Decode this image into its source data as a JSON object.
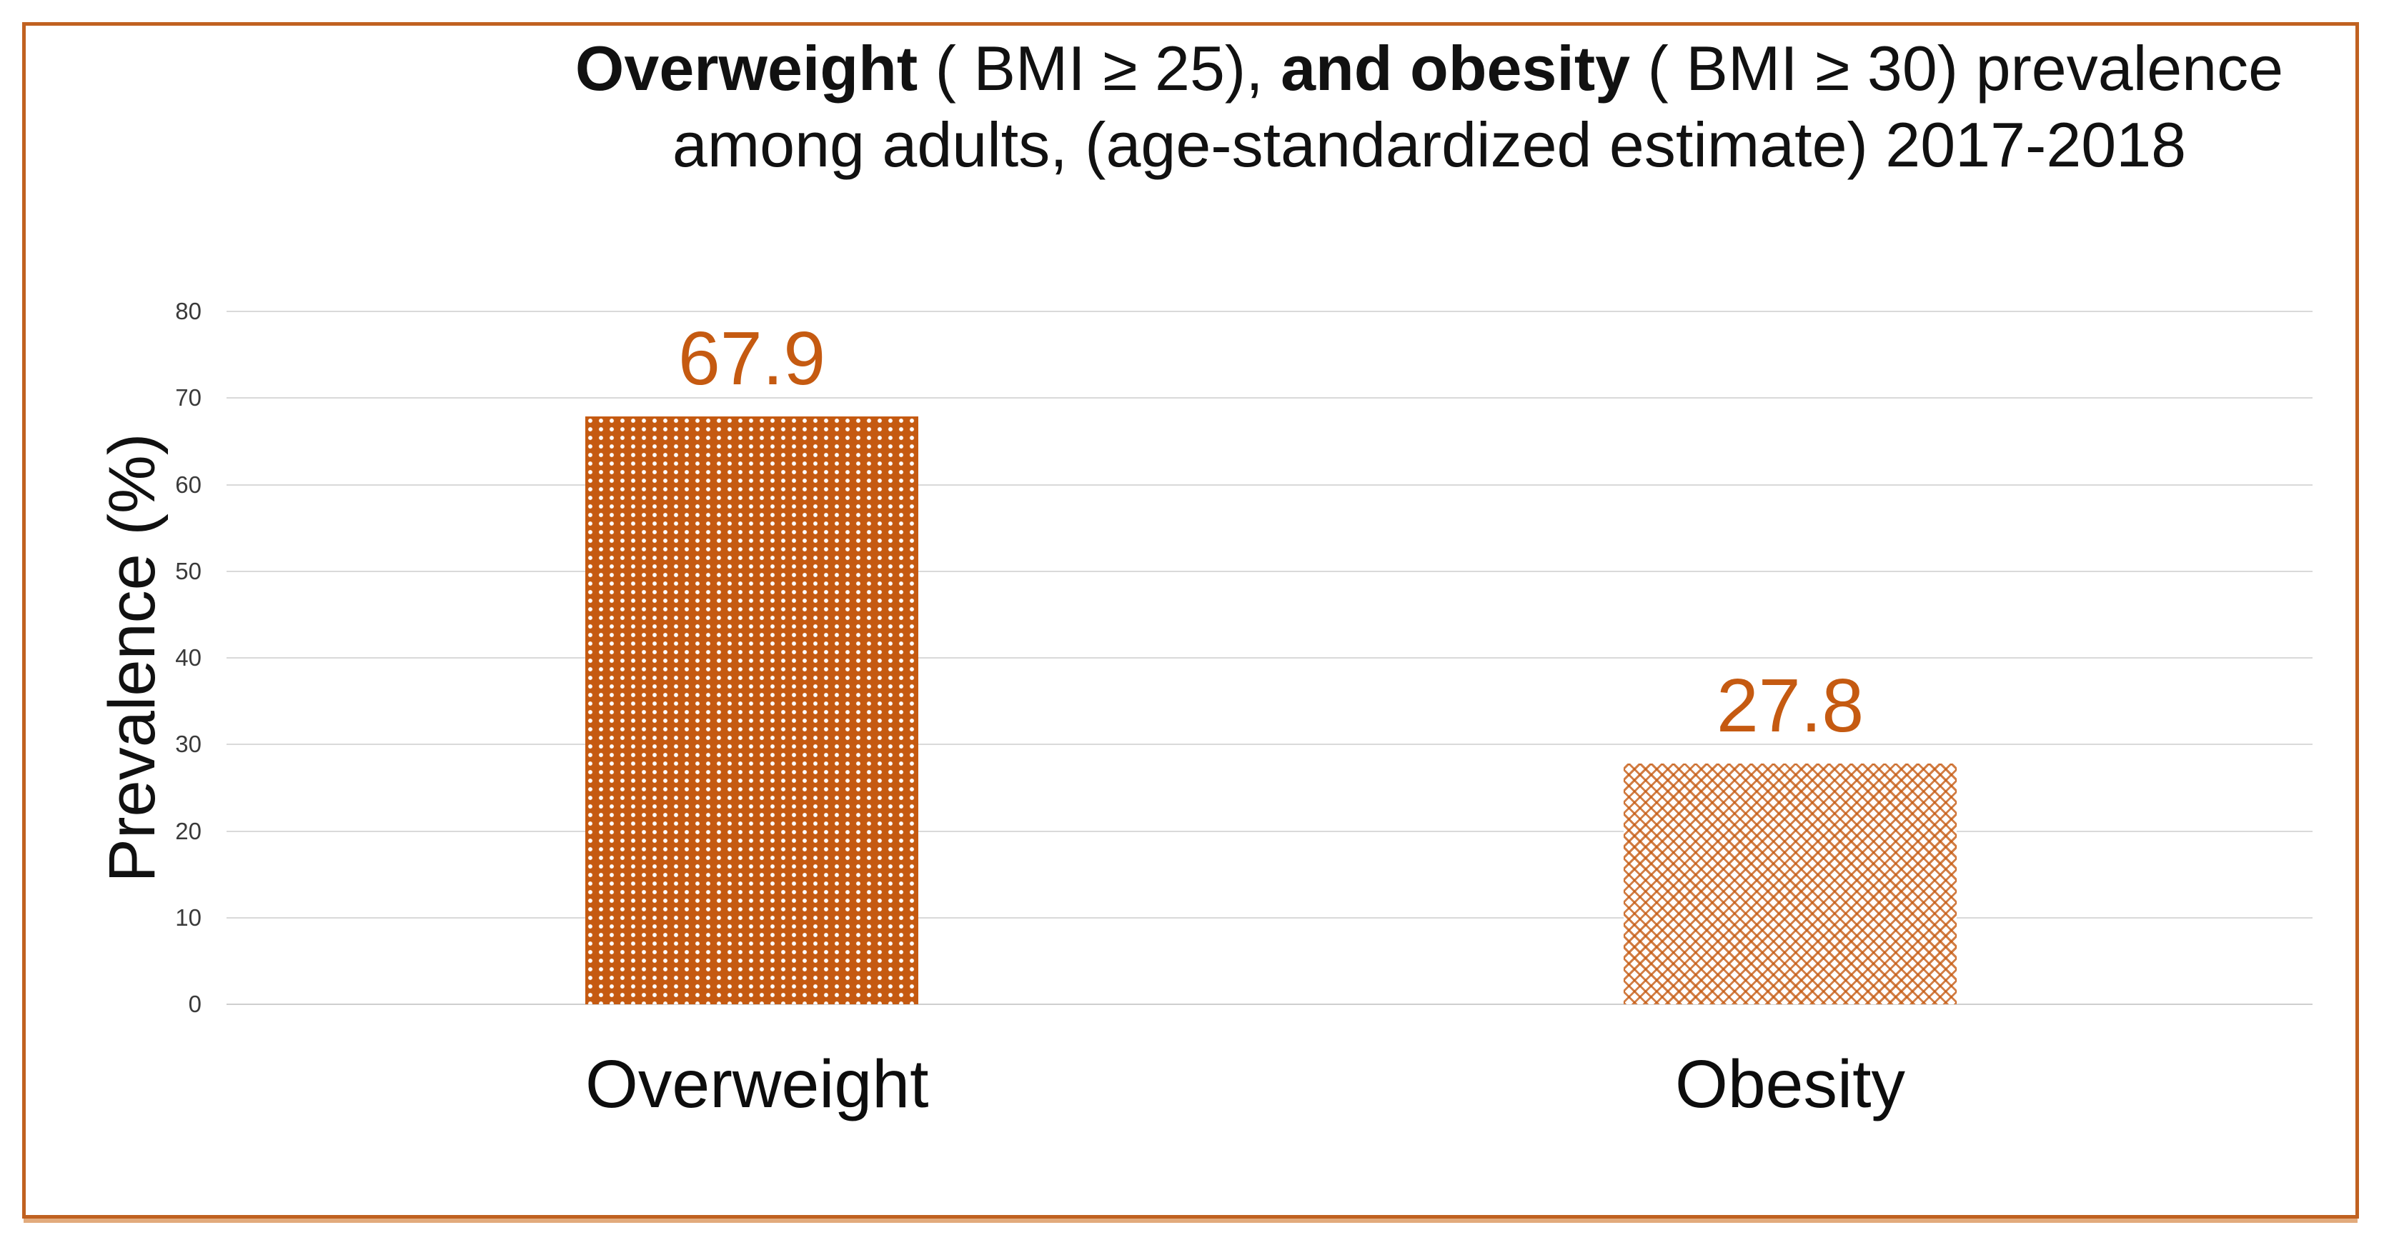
{
  "page": {
    "background": "#FFFFFF"
  },
  "frame": {
    "border_color": "#C06120"
  },
  "title": {
    "bold1": "Overweight",
    "reg1": " ( BMI ≥ 25), ",
    "bold2": "and obesity",
    "reg2": " ( BMI ≥ 30) prevalence",
    "line2": "among adults, (age-standardized estimate) 2017-2018"
  },
  "y_axis": {
    "label": "Prevalence (%)",
    "ticks_top_to_bottom": [
      "80",
      "70",
      "60",
      "50",
      "40",
      "30",
      "20",
      "10",
      "0"
    ]
  },
  "x_axis": {
    "categories": [
      "Overweight",
      "Obesity"
    ]
  },
  "data_labels": [
    "67.9",
    "27.8"
  ],
  "chart_data": {
    "type": "bar",
    "title": "Overweight ( BMI ≥ 25), and obesity ( BMI ≥ 30) prevalence among adults, (age-standardized estimate) 2017-2018",
    "categories": [
      "Overweight",
      "Obesity"
    ],
    "values": [
      67.9,
      27.8
    ],
    "xlabel": "",
    "ylabel": "Prevalence (%)",
    "ylim": [
      0,
      80
    ],
    "yticks": [
      0,
      10,
      20,
      30,
      40,
      50,
      60,
      70,
      80
    ],
    "grid": true,
    "legend": false,
    "gridline_color": "#D9D9D9",
    "data_label_color": "#C55A11",
    "bar_style": [
      {
        "category": "Overweight",
        "fill_base": "#C55A11",
        "pattern": "white-dot-grid",
        "pattern_color": "#FFFFFF"
      },
      {
        "category": "Obesity",
        "fill_base": "#FFFFFF",
        "pattern": "orange-dotted-diamond-lattice",
        "pattern_color": "#C55A11"
      }
    ]
  }
}
